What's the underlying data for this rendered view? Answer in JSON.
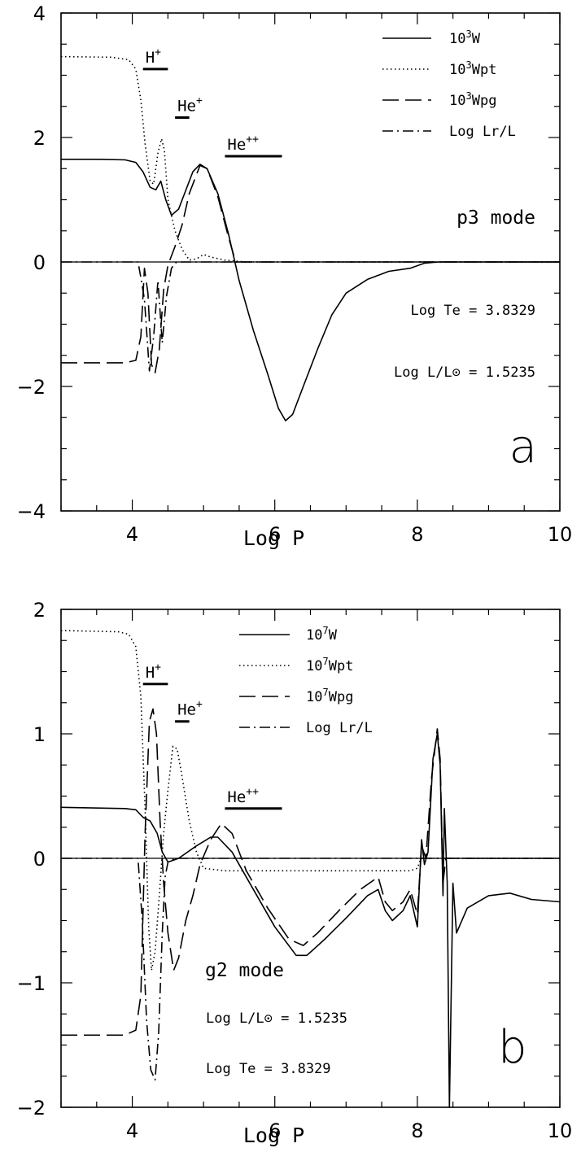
{
  "chart_data": [
    {
      "type": "line",
      "panel_letter": "a",
      "mode_label": "p3 mode",
      "xlabel": "Log P",
      "xlim": [
        3,
        10
      ],
      "ylim": [
        -4,
        4
      ],
      "x_ticks": [
        4,
        6,
        8,
        10
      ],
      "y_ticks": [
        -4,
        -2,
        0,
        2,
        4
      ],
      "y_tick_labels": [
        "−4",
        "−2",
        "0",
        "2",
        "4"
      ],
      "info_lines": [
        "Log Te = 3.8329",
        "Log L/L⊙ = 1.5235"
      ],
      "ionization_zones": [
        {
          "label": "H",
          "sup": "+",
          "x_start": 4.15,
          "x_end": 4.5,
          "y": 3.1
        },
        {
          "label": "He",
          "sup": "+",
          "x_start": 4.6,
          "x_end": 4.8,
          "y": 2.32
        },
        {
          "label": "He",
          "sup": "++",
          "x_start": 5.3,
          "x_end": 6.1,
          "y": 1.7
        }
      ],
      "legend": [
        {
          "base": "10",
          "sup": "3",
          "rest": "W",
          "style": "solid"
        },
        {
          "base": "10",
          "sup": "3",
          "rest": "Wpt",
          "style": "dotted"
        },
        {
          "base": "10",
          "sup": "3",
          "rest": "Wpg",
          "style": "dashed"
        },
        {
          "base": "",
          "sup": "",
          "rest": "Log Lr/L",
          "style": "dashdot"
        }
      ],
      "series": [
        {
          "style": "solid",
          "points": [
            [
              3,
              1.65
            ],
            [
              3.5,
              1.65
            ],
            [
              3.9,
              1.64
            ],
            [
              4.05,
              1.6
            ],
            [
              4.15,
              1.45
            ],
            [
              4.25,
              1.2
            ],
            [
              4.33,
              1.16
            ],
            [
              4.4,
              1.3
            ],
            [
              4.47,
              1.0
            ],
            [
              4.55,
              0.75
            ],
            [
              4.65,
              0.85
            ],
            [
              4.75,
              1.15
            ],
            [
              4.85,
              1.45
            ],
            [
              4.95,
              1.57
            ],
            [
              5.05,
              1.5
            ],
            [
              5.2,
              1.1
            ],
            [
              5.35,
              0.45
            ],
            [
              5.5,
              -0.3
            ],
            [
              5.7,
              -1.1
            ],
            [
              5.9,
              -1.8
            ],
            [
              6.05,
              -2.35
            ],
            [
              6.15,
              -2.55
            ],
            [
              6.25,
              -2.45
            ],
            [
              6.4,
              -2.0
            ],
            [
              6.6,
              -1.4
            ],
            [
              6.8,
              -0.85
            ],
            [
              7.0,
              -0.5
            ],
            [
              7.3,
              -0.28
            ],
            [
              7.6,
              -0.15
            ],
            [
              7.9,
              -0.1
            ],
            [
              8.1,
              -0.02
            ],
            [
              8.3,
              0.0
            ],
            [
              10,
              0.0
            ]
          ]
        },
        {
          "style": "dotted",
          "points": [
            [
              3,
              3.3
            ],
            [
              3.7,
              3.29
            ],
            [
              3.95,
              3.25
            ],
            [
              4.05,
              3.1
            ],
            [
              4.12,
              2.6
            ],
            [
              4.18,
              1.9
            ],
            [
              4.25,
              1.3
            ],
            [
              4.3,
              1.25
            ],
            [
              4.36,
              1.75
            ],
            [
              4.41,
              1.98
            ],
            [
              4.45,
              1.8
            ],
            [
              4.5,
              1.0
            ],
            [
              4.6,
              0.5
            ],
            [
              4.7,
              0.2
            ],
            [
              4.8,
              0.03
            ],
            [
              4.9,
              0.05
            ],
            [
              5.0,
              0.12
            ],
            [
              5.1,
              0.08
            ],
            [
              5.3,
              0.03
            ],
            [
              5.6,
              0.0
            ],
            [
              10,
              0.0
            ]
          ]
        },
        {
          "style": "dashed",
          "points": [
            [
              3,
              -1.62
            ],
            [
              3.9,
              -1.62
            ],
            [
              4.05,
              -1.58
            ],
            [
              4.12,
              -1.2
            ],
            [
              4.17,
              -0.1
            ],
            [
              4.22,
              -0.5
            ],
            [
              4.27,
              -1.65
            ],
            [
              4.32,
              -1.78
            ],
            [
              4.38,
              -1.4
            ],
            [
              4.44,
              -0.45
            ],
            [
              4.5,
              -0.05
            ],
            [
              4.6,
              0.25
            ],
            [
              4.7,
              0.6
            ],
            [
              4.8,
              1.1
            ],
            [
              4.95,
              1.55
            ],
            [
              5.05,
              1.5
            ],
            [
              5.2,
              1.05
            ],
            [
              5.35,
              0.4
            ],
            [
              5.45,
              0.0
            ],
            [
              10,
              0.0
            ]
          ]
        },
        {
          "style": "dashdot",
          "points": [
            [
              3,
              0.0
            ],
            [
              4.08,
              0.0
            ],
            [
              4.12,
              -0.25
            ],
            [
              4.17,
              -0.6
            ],
            [
              4.24,
              -1.75
            ],
            [
              4.3,
              -1.2
            ],
            [
              4.36,
              -0.3
            ],
            [
              4.42,
              -1.3
            ],
            [
              4.48,
              -0.55
            ],
            [
              4.55,
              -0.1
            ],
            [
              4.62,
              0.0
            ],
            [
              10,
              0.0
            ]
          ]
        }
      ]
    },
    {
      "type": "line",
      "panel_letter": "b",
      "mode_label": "g2 mode",
      "xlabel": "Log P",
      "xlim": [
        3,
        10
      ],
      "ylim": [
        -2,
        2
      ],
      "x_ticks": [
        4,
        6,
        8,
        10
      ],
      "y_ticks": [
        -2,
        -1,
        0,
        1,
        2
      ],
      "y_tick_labels": [
        "−2",
        "−1",
        "0",
        "1",
        "2"
      ],
      "info_lines": [
        "Log L/L⊙ = 1.5235",
        "Log Te = 3.8329"
      ],
      "ionization_zones": [
        {
          "label": "H",
          "sup": "+",
          "x_start": 4.15,
          "x_end": 4.5,
          "y": 1.4
        },
        {
          "label": "He",
          "sup": "+",
          "x_start": 4.6,
          "x_end": 4.8,
          "y": 1.1
        },
        {
          "label": "He",
          "sup": "++",
          "x_start": 5.3,
          "x_end": 6.1,
          "y": 0.4
        }
      ],
      "legend": [
        {
          "base": "10",
          "sup": "7",
          "rest": "W",
          "style": "solid"
        },
        {
          "base": "10",
          "sup": "7",
          "rest": "Wpt",
          "style": "dotted"
        },
        {
          "base": "10",
          "sup": "7",
          "rest": "Wpg",
          "style": "dashed"
        },
        {
          "base": "",
          "sup": "",
          "rest": "Log Lr/L",
          "style": "dashdot"
        }
      ],
      "series": [
        {
          "style": "solid",
          "points": [
            [
              3,
              0.41
            ],
            [
              3.9,
              0.4
            ],
            [
              4.05,
              0.39
            ],
            [
              4.15,
              0.33
            ],
            [
              4.25,
              0.3
            ],
            [
              4.35,
              0.2
            ],
            [
              4.42,
              0.05
            ],
            [
              4.5,
              -0.03
            ],
            [
              4.65,
              0.0
            ],
            [
              4.9,
              0.1
            ],
            [
              5.1,
              0.17
            ],
            [
              5.2,
              0.17
            ],
            [
              5.4,
              0.05
            ],
            [
              5.7,
              -0.25
            ],
            [
              6.0,
              -0.55
            ],
            [
              6.3,
              -0.78
            ],
            [
              6.45,
              -0.78
            ],
            [
              6.7,
              -0.65
            ],
            [
              7.0,
              -0.48
            ],
            [
              7.3,
              -0.3
            ],
            [
              7.45,
              -0.25
            ],
            [
              7.55,
              -0.42
            ],
            [
              7.65,
              -0.5
            ],
            [
              7.8,
              -0.42
            ],
            [
              7.9,
              -0.3
            ],
            [
              8.0,
              -0.55
            ],
            [
              8.06,
              0.15
            ],
            [
              8.1,
              -0.05
            ],
            [
              8.15,
              0.05
            ],
            [
              8.22,
              0.8
            ],
            [
              8.28,
              1.0
            ],
            [
              8.32,
              0.75
            ],
            [
              8.36,
              -0.3
            ],
            [
              8.38,
              0.4
            ],
            [
              8.42,
              -0.2
            ],
            [
              8.45,
              -2.0
            ],
            [
              8.5,
              -0.2
            ],
            [
              8.55,
              -0.6
            ],
            [
              8.7,
              -0.4
            ],
            [
              9.0,
              -0.3
            ],
            [
              9.3,
              -0.28
            ],
            [
              9.6,
              -0.33
            ],
            [
              10,
              -0.35
            ]
          ]
        },
        {
          "style": "dotted",
          "points": [
            [
              3,
              1.83
            ],
            [
              3.8,
              1.82
            ],
            [
              3.95,
              1.8
            ],
            [
              4.05,
              1.7
            ],
            [
              4.12,
              1.3
            ],
            [
              4.18,
              0.4
            ],
            [
              4.23,
              -0.55
            ],
            [
              4.27,
              -0.9
            ],
            [
              4.32,
              -0.75
            ],
            [
              4.38,
              -0.3
            ],
            [
              4.44,
              0.2
            ],
            [
              4.5,
              0.55
            ],
            [
              4.57,
              0.9
            ],
            [
              4.63,
              0.88
            ],
            [
              4.7,
              0.65
            ],
            [
              4.8,
              0.3
            ],
            [
              4.9,
              0.05
            ],
            [
              5.0,
              -0.08
            ],
            [
              5.3,
              -0.1
            ],
            [
              6.0,
              -0.1
            ],
            [
              7.0,
              -0.1
            ],
            [
              7.9,
              -0.1
            ],
            [
              8.0,
              -0.08
            ],
            [
              8.05,
              0.0
            ],
            [
              10,
              0.0
            ]
          ]
        },
        {
          "style": "dashed",
          "points": [
            [
              3,
              -1.42
            ],
            [
              3.9,
              -1.42
            ],
            [
              4.05,
              -1.38
            ],
            [
              4.12,
              -1.1
            ],
            [
              4.18,
              0.2
            ],
            [
              4.24,
              1.1
            ],
            [
              4.29,
              1.2
            ],
            [
              4.34,
              1.0
            ],
            [
              4.39,
              0.3
            ],
            [
              4.44,
              -0.2
            ],
            [
              4.5,
              -0.6
            ],
            [
              4.58,
              -0.9
            ],
            [
              4.65,
              -0.8
            ],
            [
              4.75,
              -0.5
            ],
            [
              4.85,
              -0.3
            ],
            [
              4.95,
              -0.05
            ],
            [
              5.1,
              0.15
            ],
            [
              5.25,
              0.28
            ],
            [
              5.4,
              0.2
            ],
            [
              5.6,
              -0.1
            ],
            [
              5.9,
              -0.4
            ],
            [
              6.2,
              -0.65
            ],
            [
              6.4,
              -0.7
            ],
            [
              6.6,
              -0.6
            ],
            [
              6.9,
              -0.42
            ],
            [
              7.2,
              -0.25
            ],
            [
              7.45,
              -0.15
            ],
            [
              7.55,
              -0.35
            ],
            [
              7.65,
              -0.42
            ],
            [
              7.8,
              -0.35
            ],
            [
              7.9,
              -0.25
            ],
            [
              8.0,
              -0.45
            ],
            [
              8.06,
              0.1
            ],
            [
              8.12,
              0.0
            ],
            [
              8.2,
              0.65
            ],
            [
              8.28,
              1.04
            ],
            [
              8.32,
              0.8
            ],
            [
              8.36,
              -0.2
            ],
            [
              8.4,
              0.0
            ],
            [
              10,
              0.0
            ]
          ]
        },
        {
          "style": "dashdot",
          "points": [
            [
              3,
              0.0
            ],
            [
              4.08,
              0.0
            ],
            [
              4.14,
              -0.5
            ],
            [
              4.2,
              -1.3
            ],
            [
              4.26,
              -1.7
            ],
            [
              4.32,
              -1.78
            ],
            [
              4.37,
              -1.4
            ],
            [
              4.42,
              -0.6
            ],
            [
              4.46,
              -0.15
            ],
            [
              4.5,
              -0.03
            ],
            [
              4.6,
              0.0
            ],
            [
              10,
              0.0
            ]
          ]
        }
      ]
    }
  ]
}
